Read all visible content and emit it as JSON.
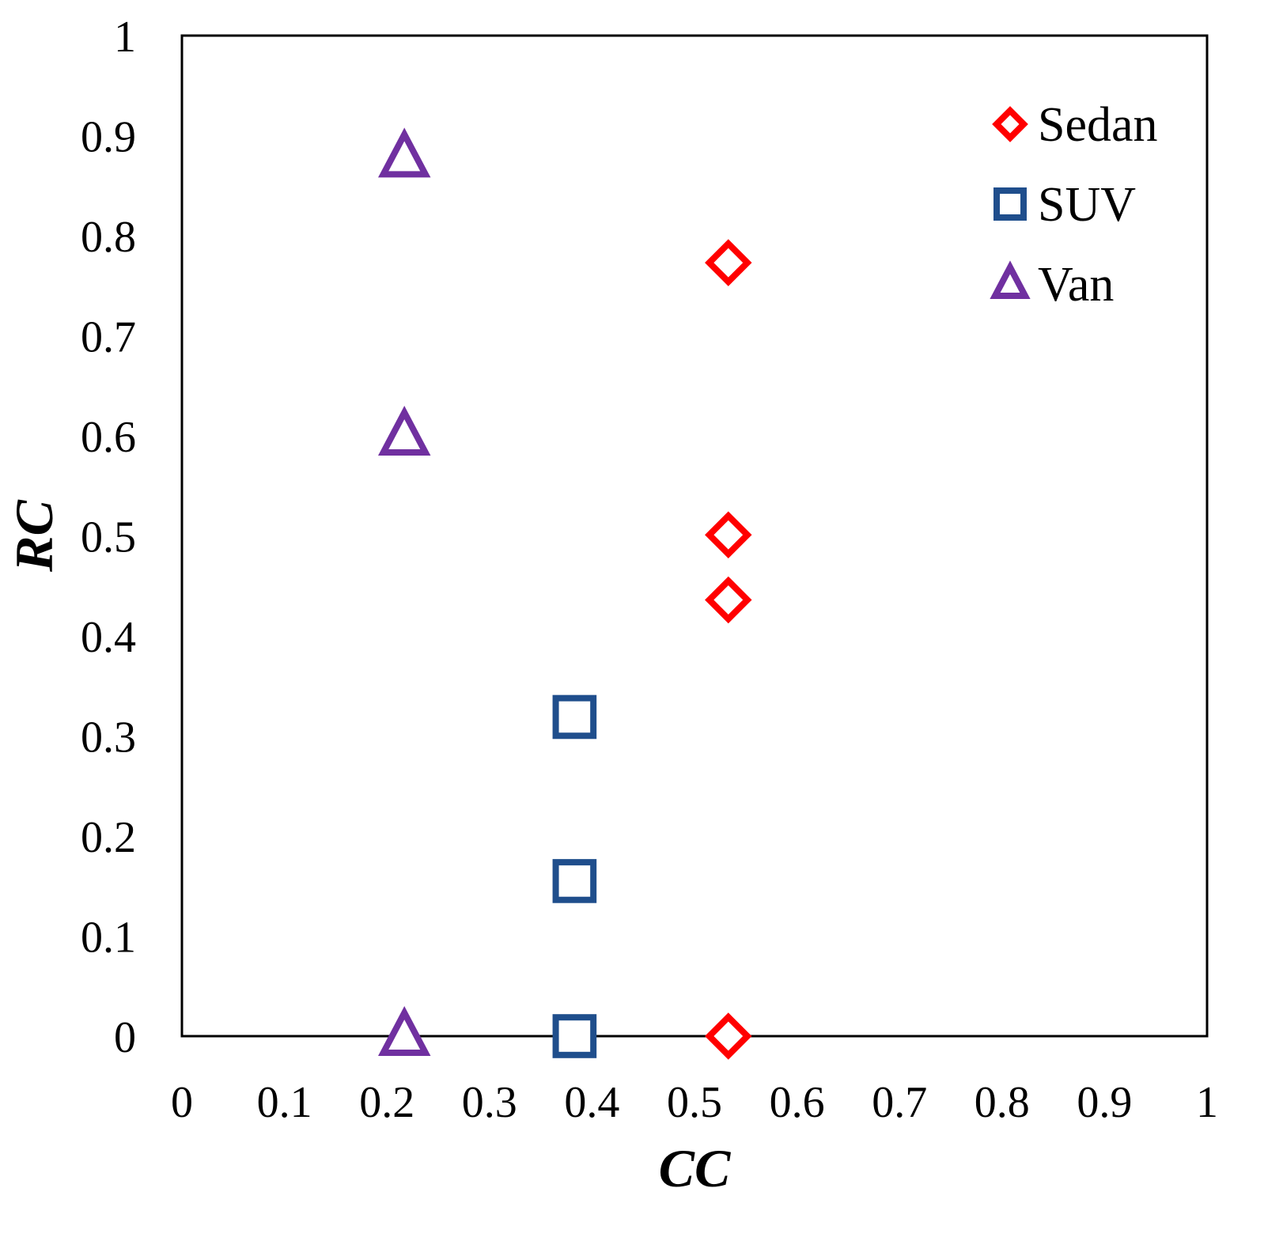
{
  "chart_data": {
    "type": "scatter",
    "xlabel": "CC",
    "ylabel": "RC",
    "xlim": [
      0,
      1
    ],
    "ylim": [
      0,
      1
    ],
    "x_ticks": [
      "0",
      "0.1",
      "0.2",
      "0.3",
      "0.4",
      "0.5",
      "0.6",
      "0.7",
      "0.8",
      "0.9",
      "1"
    ],
    "y_ticks": [
      "0",
      "0.1",
      "0.2",
      "0.3",
      "0.4",
      "0.5",
      "0.6",
      "0.7",
      "0.8",
      "0.9",
      "1"
    ],
    "grid": false,
    "legend_position": "top-right",
    "series": [
      {
        "name": "Sedan",
        "marker": "diamond",
        "color": "#FF0000",
        "points": [
          {
            "x": 0.533,
            "y": 0.773
          },
          {
            "x": 0.533,
            "y": 0.501
          },
          {
            "x": 0.533,
            "y": 0.436
          },
          {
            "x": 0.533,
            "y": 0.0
          }
        ]
      },
      {
        "name": "SUV",
        "marker": "square",
        "color": "#1F4E8C",
        "points": [
          {
            "x": 0.383,
            "y": 0.319
          },
          {
            "x": 0.383,
            "y": 0.155
          },
          {
            "x": 0.383,
            "y": 0.0
          }
        ]
      },
      {
        "name": "Van",
        "marker": "triangle",
        "color": "#7030A0",
        "points": [
          {
            "x": 0.217,
            "y": 0.878
          },
          {
            "x": 0.217,
            "y": 0.6
          },
          {
            "x": 0.217,
            "y": 0.0
          }
        ]
      }
    ]
  }
}
